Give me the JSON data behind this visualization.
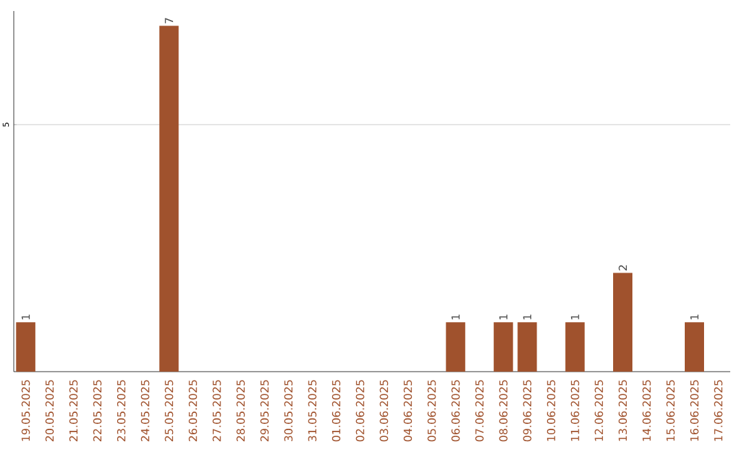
{
  "chart_data": {
    "type": "bar",
    "categories": [
      "19.05.2025",
      "20.05.2025",
      "21.05.2025",
      "22.05.2025",
      "23.05.2025",
      "24.05.2025",
      "25.05.2025",
      "26.05.2025",
      "27.05.2025",
      "28.05.2025",
      "29.05.2025",
      "30.05.2025",
      "31.05.2025",
      "01.06.2025",
      "02.06.2025",
      "03.06.2025",
      "04.06.2025",
      "05.06.2025",
      "06.06.2025",
      "07.06.2025",
      "08.06.2025",
      "09.06.2025",
      "10.06.2025",
      "11.06.2025",
      "12.06.2025",
      "13.06.2025",
      "14.06.2025",
      "15.06.2025",
      "16.06.2025",
      "17.06.2025"
    ],
    "values": [
      1,
      0,
      0,
      0,
      0,
      0,
      7,
      0,
      0,
      0,
      0,
      0,
      0,
      0,
      0,
      0,
      0,
      0,
      1,
      0,
      1,
      1,
      0,
      1,
      0,
      2,
      0,
      0,
      1,
      0
    ],
    "value_labels": [
      "1",
      null,
      null,
      null,
      null,
      null,
      "7",
      null,
      null,
      null,
      null,
      null,
      null,
      null,
      null,
      null,
      null,
      null,
      "1",
      null,
      "1",
      "1",
      null,
      "1",
      null,
      "2",
      null,
      null,
      "1",
      null
    ],
    "color": "#a0522d",
    "ylim": [
      0,
      7.3
    ],
    "yticks": [
      5
    ],
    "grid": "y"
  }
}
